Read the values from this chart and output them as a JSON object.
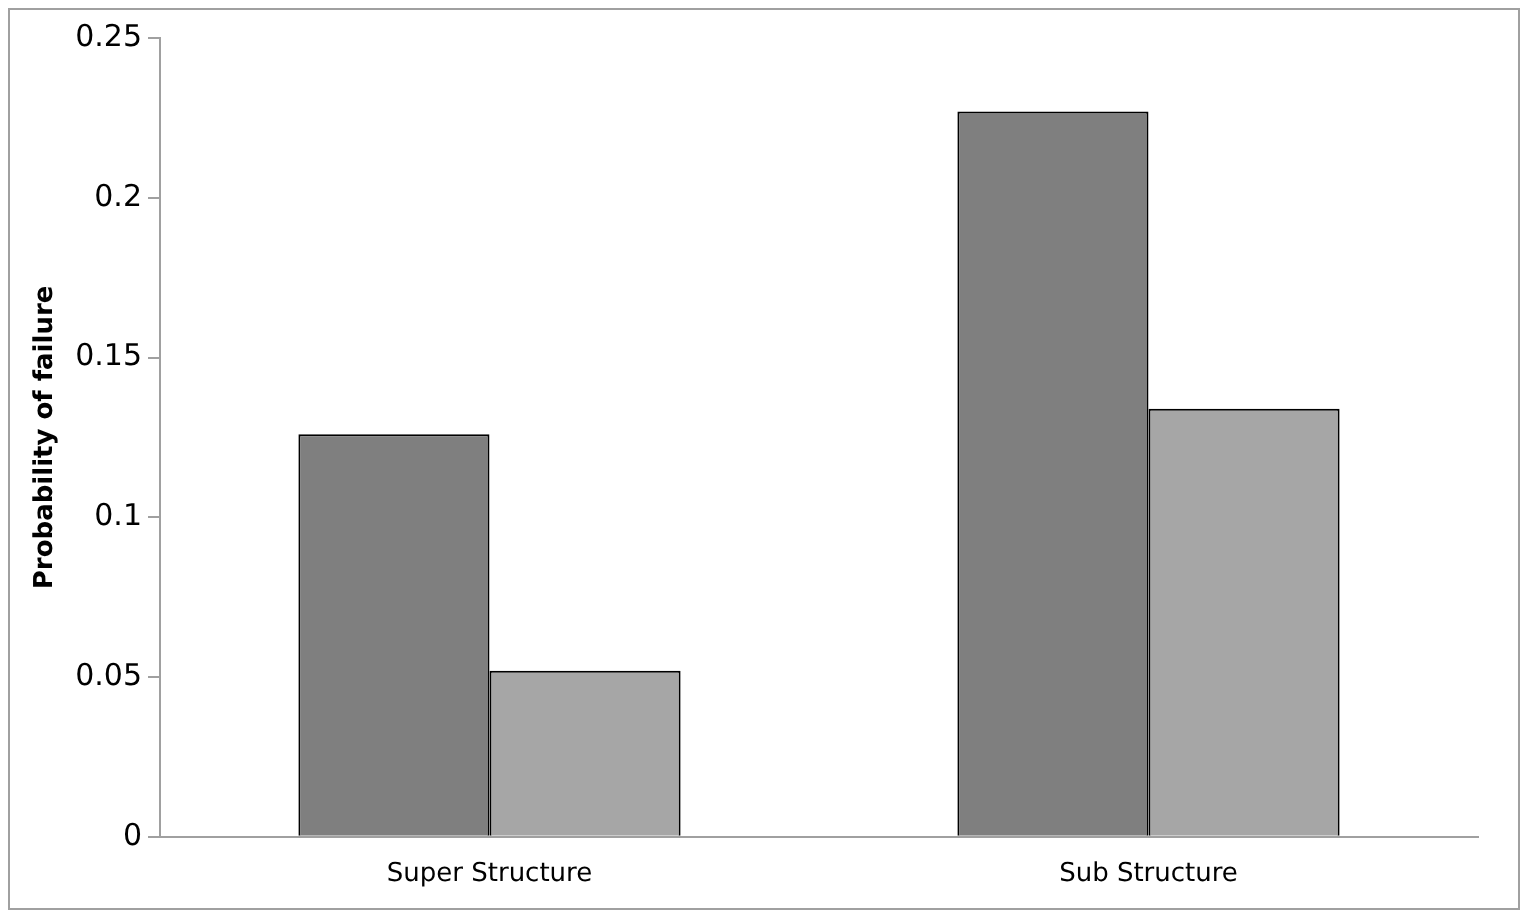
{
  "chart_data": {
    "type": "bar",
    "ylabel": "Probability of failure",
    "categories": [
      "Super Structure",
      "Sub Structure"
    ],
    "series": [
      {
        "color": "#7f7f7f",
        "values": [
          0.126,
          0.227
        ]
      },
      {
        "color": "#a6a6a6",
        "values": [
          0.052,
          0.134
        ]
      }
    ],
    "ylim": [
      0,
      0.25
    ],
    "yticks": [
      0,
      0.05,
      0.1,
      0.15,
      0.2,
      0.25
    ],
    "grid": false,
    "legend": false
  }
}
